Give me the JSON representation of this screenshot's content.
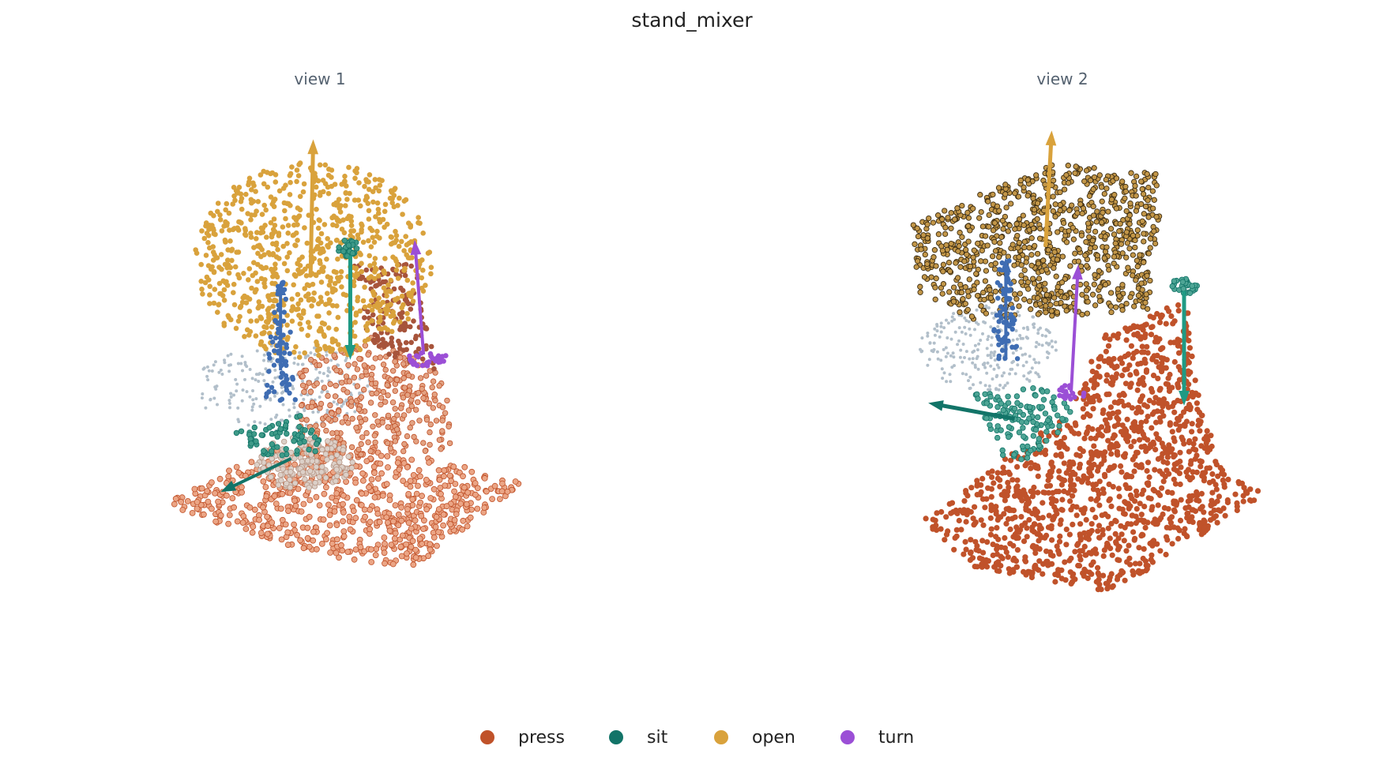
{
  "title": "stand_mixer",
  "views": [
    {
      "label": "view 1"
    },
    {
      "label": "view 2"
    }
  ],
  "legend": [
    {
      "name": "press",
      "color": "#c0522a"
    },
    {
      "name": "sit",
      "color": "#127468"
    },
    {
      "name": "open",
      "color": "#d9a23c"
    },
    {
      "name": "turn",
      "color": "#9b4fd6"
    }
  ]
}
